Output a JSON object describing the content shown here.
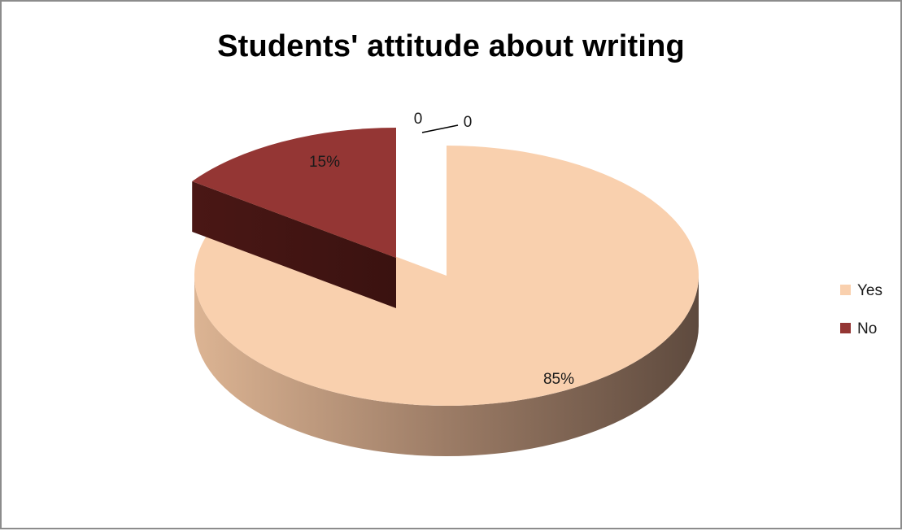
{
  "chart_data": {
    "type": "pie",
    "title": "Students' attitude about writing",
    "three_d": true,
    "exploded": true,
    "categories": [
      "Yes",
      "No"
    ],
    "values": [
      85,
      15
    ],
    "data_labels": [
      "85%",
      "15%"
    ],
    "extra_labels": [
      "0",
      "0"
    ],
    "colors": [
      "#f9d0ae",
      "#943634"
    ],
    "legend": {
      "placement": "right",
      "entries": [
        "Yes",
        "No"
      ]
    }
  }
}
